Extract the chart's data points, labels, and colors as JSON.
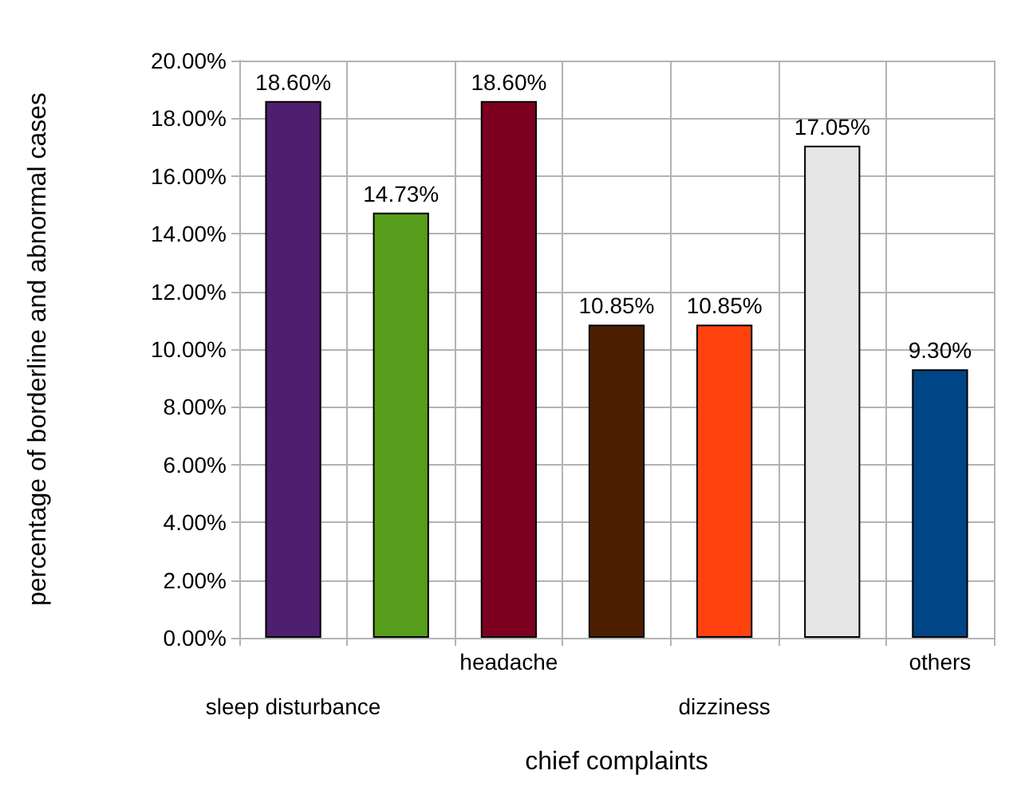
{
  "chart_data": {
    "type": "bar",
    "xlabel": "chief complaints",
    "ylabel": "percentage of borderline and abnormal cases",
    "categories": [
      "sleep disturbance",
      null,
      "headache",
      null,
      "dizziness",
      null,
      "others"
    ],
    "values": [
      18.6,
      14.73,
      18.6,
      10.85,
      10.85,
      17.05,
      9.3
    ],
    "colors": [
      "#4e1f6e",
      "#579d1c",
      "#7e0021",
      "#4b1f00",
      "#ff420e",
      "#e6e6e6",
      "#004586"
    ],
    "value_labels": [
      "18.60%",
      "14.73%",
      "18.60%",
      "10.85%",
      "10.85%",
      "17.05%",
      "9.30%"
    ],
    "ylim": [
      0,
      20
    ],
    "yticks": [
      {
        "value": 0,
        "label": "0.00%"
      },
      {
        "value": 2,
        "label": "2.00%"
      },
      {
        "value": 4,
        "label": "4.00%"
      },
      {
        "value": 6,
        "label": "6.00%"
      },
      {
        "value": 8,
        "label": "8.00%"
      },
      {
        "value": 10,
        "label": "10.00%"
      },
      {
        "value": 12,
        "label": "12.00%"
      },
      {
        "value": 14,
        "label": "14.00%"
      },
      {
        "value": 16,
        "label": "16.00%"
      },
      {
        "value": 18,
        "label": "18.00%"
      },
      {
        "value": 20,
        "label": "20.00%"
      }
    ],
    "grid": true
  }
}
